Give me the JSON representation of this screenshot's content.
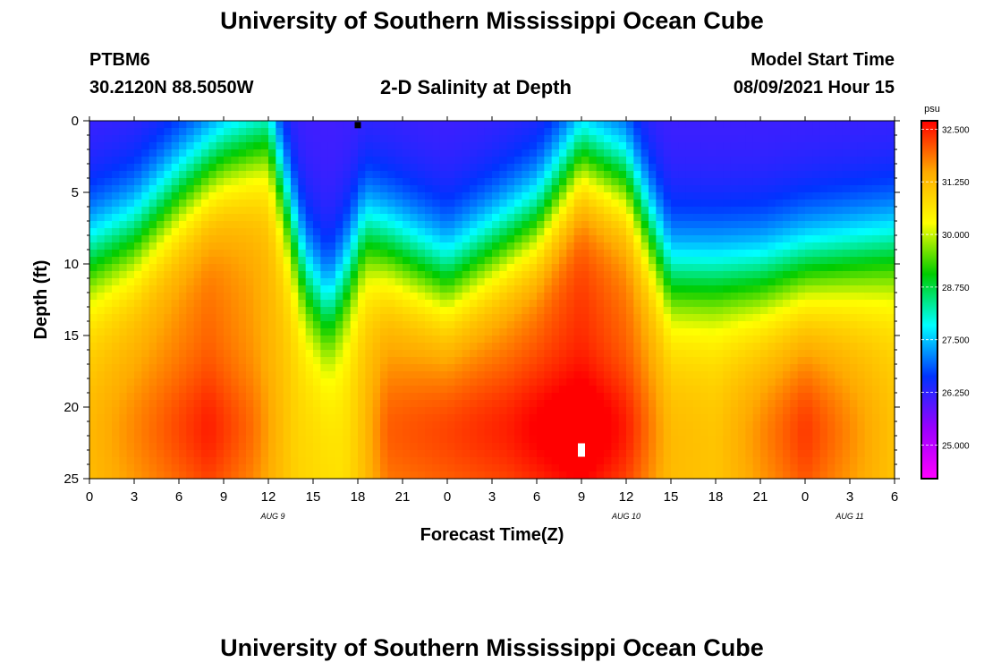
{
  "header": {
    "title": "University of Southern Mississippi Ocean Cube",
    "station_id": "PTBM6",
    "coordinates": "30.2120N  88.5050W",
    "chart_title": "2-D Salinity at Depth",
    "model_start_label": "Model Start Time",
    "model_start_value": "08/09/2021 Hour 15"
  },
  "footer": {
    "title": "University of Southern Mississippi Ocean Cube"
  },
  "chart_data": {
    "type": "heatmap",
    "title": "2-D Salinity at Depth",
    "xlabel": "Forecast Time(Z)",
    "ylabel": "Depth (ft)",
    "x_range_hours": [
      0,
      54
    ],
    "y_range_ft": [
      0,
      25
    ],
    "x_ticks": [
      "0",
      "3",
      "6",
      "9",
      "12",
      "15",
      "18",
      "21",
      "0",
      "3",
      "6",
      "9",
      "12",
      "15",
      "18",
      "21",
      "0",
      "3",
      "6"
    ],
    "y_ticks": [
      "0",
      "5",
      "10",
      "15",
      "20",
      "25"
    ],
    "date_labels": [
      {
        "text": "AUG 9",
        "hour": 12
      },
      {
        "text": "AUG 10",
        "hour": 36
      },
      {
        "text": "AUG 11",
        "hour": 51
      }
    ],
    "colorbar": {
      "unit": "psu",
      "range": [
        24.2,
        32.7
      ],
      "ticks": [
        "32.500",
        "31.250",
        "30.000",
        "28.750",
        "27.500",
        "26.250",
        "25.000"
      ],
      "colors": [
        "#ff00ff",
        "#9900ff",
        "#0033ff",
        "#00ffff",
        "#00cc00",
        "#ffff00",
        "#ffaa00",
        "#ff0000"
      ]
    },
    "markers": [
      {
        "label": "surface marker",
        "hour": 18,
        "depth_ft": 0.3,
        "color": "#000000"
      },
      {
        "label": "max marker",
        "hour": 33,
        "depth_ft": 23,
        "color": "#ffffff"
      }
    ]
  }
}
